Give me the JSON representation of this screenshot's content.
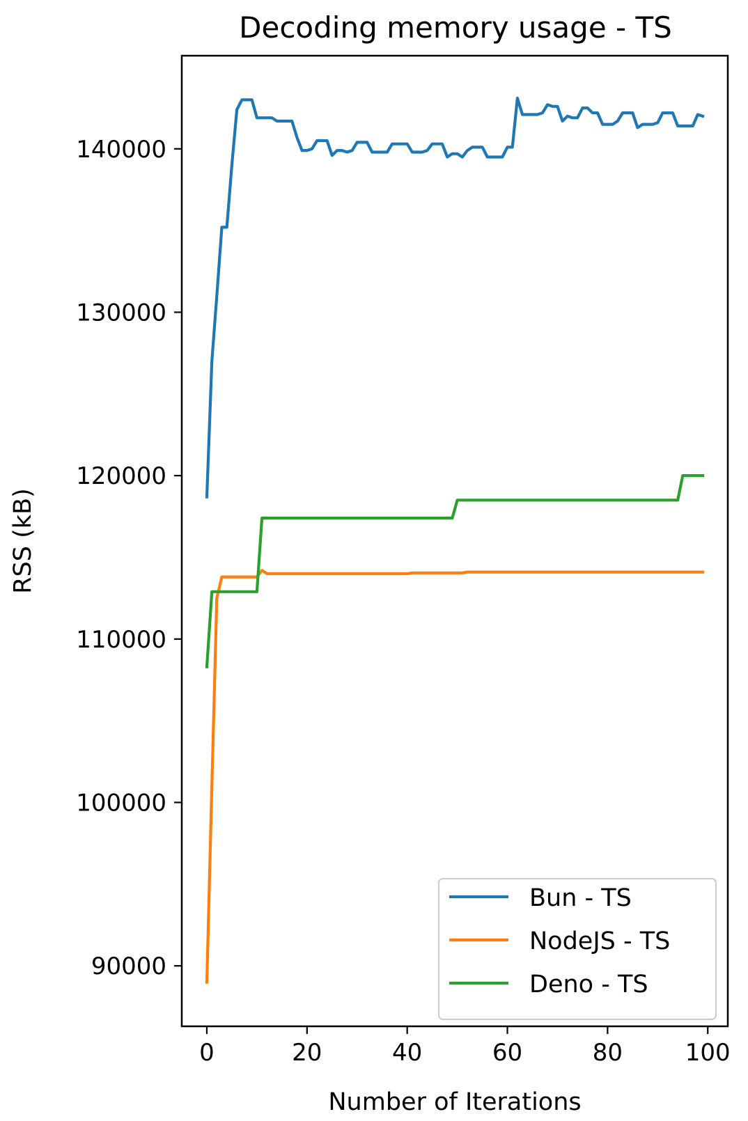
{
  "chart_data": {
    "type": "line",
    "title": "Decoding memory usage - TS",
    "xlabel": "Number of Iterations",
    "ylabel": "RSS (kB)",
    "xlim": [
      -5,
      104
    ],
    "ylim": [
      86300,
      145700
    ],
    "xticks": [
      0,
      20,
      40,
      60,
      80,
      100
    ],
    "yticks": [
      90000,
      100000,
      110000,
      120000,
      130000,
      140000
    ],
    "grid": false,
    "legend_position": "lower right",
    "series": [
      {
        "name": "Bun - TS",
        "color": "#1f77b4",
        "points": [
          [
            0,
            118700
          ],
          [
            1,
            127000
          ],
          [
            2,
            131000
          ],
          [
            3,
            135200
          ],
          [
            4,
            135200
          ],
          [
            5,
            139000
          ],
          [
            6,
            142400
          ],
          [
            7,
            143000
          ],
          [
            8,
            143000
          ],
          [
            9,
            143000
          ],
          [
            10,
            141900
          ],
          [
            11,
            141900
          ],
          [
            12,
            141900
          ],
          [
            13,
            141900
          ],
          [
            14,
            141700
          ],
          [
            15,
            141700
          ],
          [
            16,
            141700
          ],
          [
            17,
            141700
          ],
          [
            18,
            140700
          ],
          [
            19,
            139900
          ],
          [
            20,
            139900
          ],
          [
            21,
            140000
          ],
          [
            22,
            140500
          ],
          [
            23,
            140500
          ],
          [
            24,
            140500
          ],
          [
            25,
            139600
          ],
          [
            26,
            139900
          ],
          [
            27,
            139900
          ],
          [
            28,
            139800
          ],
          [
            29,
            139900
          ],
          [
            30,
            140400
          ],
          [
            31,
            140400
          ],
          [
            32,
            140400
          ],
          [
            33,
            139800
          ],
          [
            34,
            139800
          ],
          [
            35,
            139800
          ],
          [
            36,
            139800
          ],
          [
            37,
            140300
          ],
          [
            38,
            140300
          ],
          [
            39,
            140300
          ],
          [
            40,
            140300
          ],
          [
            41,
            139800
          ],
          [
            42,
            139800
          ],
          [
            43,
            139800
          ],
          [
            44,
            139900
          ],
          [
            45,
            140300
          ],
          [
            46,
            140300
          ],
          [
            47,
            140300
          ],
          [
            48,
            139500
          ],
          [
            49,
            139700
          ],
          [
            50,
            139700
          ],
          [
            51,
            139500
          ],
          [
            52,
            139900
          ],
          [
            53,
            140100
          ],
          [
            54,
            140100
          ],
          [
            55,
            140100
          ],
          [
            56,
            139500
          ],
          [
            57,
            139500
          ],
          [
            58,
            139500
          ],
          [
            59,
            139500
          ],
          [
            60,
            140100
          ],
          [
            61,
            140100
          ],
          [
            62,
            143100
          ],
          [
            63,
            142100
          ],
          [
            64,
            142100
          ],
          [
            65,
            142100
          ],
          [
            66,
            142100
          ],
          [
            67,
            142200
          ],
          [
            68,
            142700
          ],
          [
            69,
            142600
          ],
          [
            70,
            142600
          ],
          [
            71,
            141700
          ],
          [
            72,
            142000
          ],
          [
            73,
            141900
          ],
          [
            74,
            141900
          ],
          [
            75,
            142500
          ],
          [
            76,
            142500
          ],
          [
            77,
            142200
          ],
          [
            78,
            142200
          ],
          [
            79,
            141500
          ],
          [
            80,
            141500
          ],
          [
            81,
            141500
          ],
          [
            82,
            141700
          ],
          [
            83,
            142200
          ],
          [
            84,
            142200
          ],
          [
            85,
            142200
          ],
          [
            86,
            141300
          ],
          [
            87,
            141500
          ],
          [
            88,
            141500
          ],
          [
            89,
            141500
          ],
          [
            90,
            141600
          ],
          [
            91,
            142200
          ],
          [
            92,
            142200
          ],
          [
            93,
            142200
          ],
          [
            94,
            141400
          ],
          [
            95,
            141400
          ],
          [
            96,
            141400
          ],
          [
            97,
            141400
          ],
          [
            98,
            142100
          ],
          [
            99,
            142000
          ]
        ]
      },
      {
        "name": "NodeJS - TS",
        "color": "#ff7f0e",
        "points": [
          [
            0,
            89000
          ],
          [
            1,
            101000
          ],
          [
            2,
            112500
          ],
          [
            3,
            113800
          ],
          [
            10,
            113800
          ],
          [
            11,
            114200
          ],
          [
            12,
            114000
          ],
          [
            40,
            114000
          ],
          [
            41,
            114050
          ],
          [
            51,
            114050
          ],
          [
            52,
            114100
          ],
          [
            99,
            114100
          ]
        ]
      },
      {
        "name": "Deno - TS",
        "color": "#2ca02c",
        "points": [
          [
            0,
            108300
          ],
          [
            1,
            112900
          ],
          [
            10,
            112900
          ],
          [
            11,
            117400
          ],
          [
            49,
            117400
          ],
          [
            50,
            118500
          ],
          [
            94,
            118500
          ],
          [
            95,
            120000
          ],
          [
            99,
            120000
          ]
        ]
      }
    ]
  }
}
